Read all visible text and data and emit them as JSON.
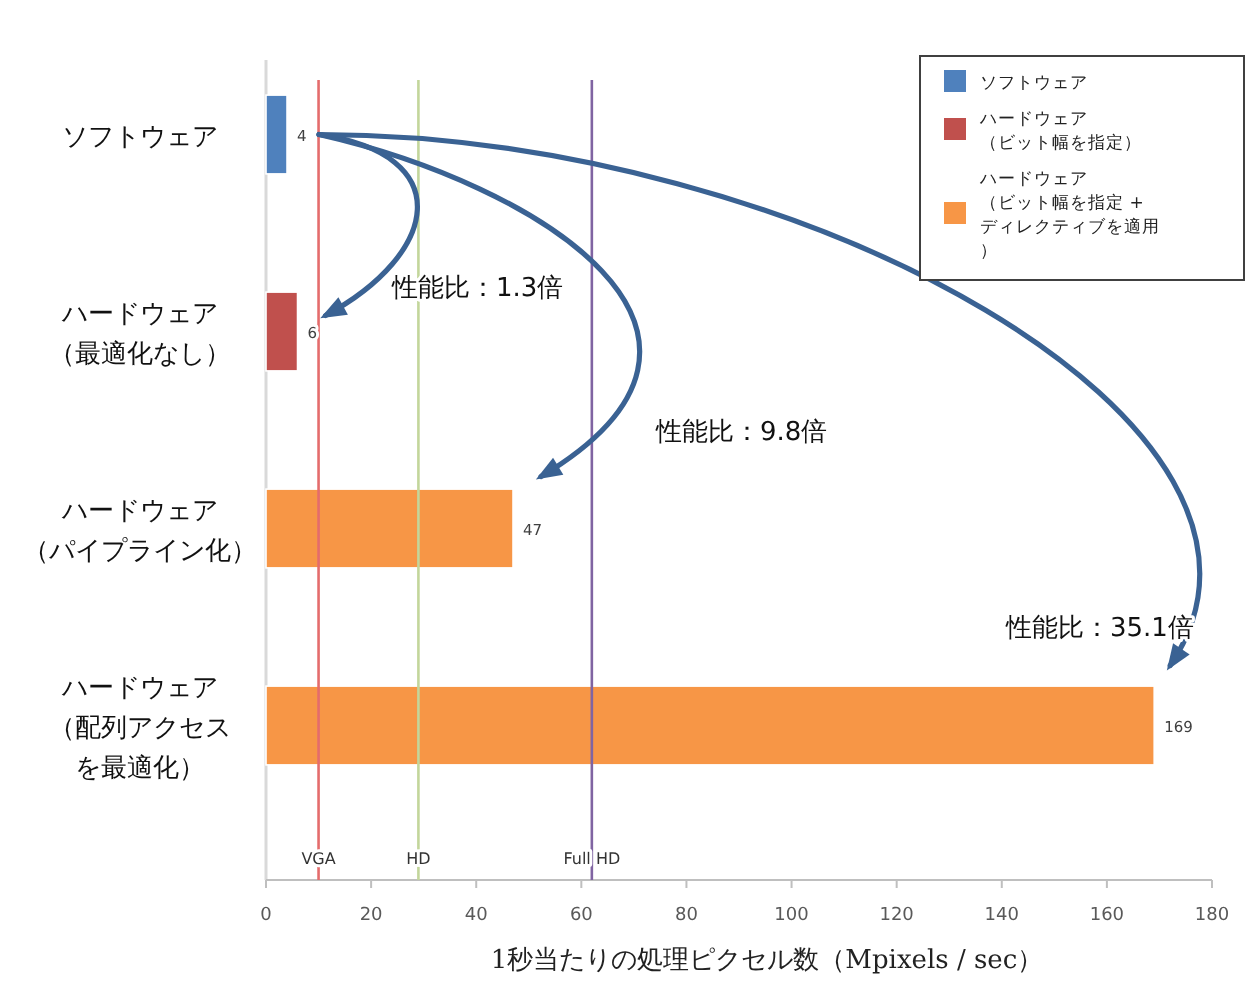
{
  "chart_data": {
    "type": "bar",
    "orientation": "horizontal",
    "stacked": true,
    "categories": [
      "ソフトウェア",
      "ハードウェア（最適化なし）",
      "ハードウェア（パイプライン化）",
      "ハードウェア（配列アクセスを最適化）"
    ],
    "series": [
      {
        "name": "ソフトウェア",
        "color": "#4f81bd",
        "values": [
          4,
          null,
          null,
          null
        ]
      },
      {
        "name": "ハードウェア（ビット幅を指定）",
        "color": "#c0504d",
        "values": [
          null,
          6,
          null,
          null
        ]
      },
      {
        "name": "ハードウェア（ビット幅を指定 +ディレクティブを適用）",
        "color": "#f79646",
        "values": [
          null,
          null,
          47,
          169
        ]
      }
    ],
    "xlabel": "1秒当たりの処理ピクセル数（Mpixels / sec）",
    "xlim": [
      0,
      180
    ],
    "xticks": [
      0,
      20,
      40,
      60,
      80,
      100,
      120,
      140,
      160,
      180
    ],
    "data_labels": true,
    "grid": false,
    "legend": "top right",
    "ref_lines": [
      {
        "axis": "x",
        "value": 10,
        "label": "VGA",
        "color": "#e46c6c"
      },
      {
        "axis": "x",
        "value": 29,
        "label": "HD",
        "color": "#c3d69b"
      },
      {
        "axis": "x",
        "value": 62,
        "label": "Full HD",
        "color": "#8064a2"
      }
    ],
    "annotations": [
      "性能比：1.3倍",
      "性能比：9.8倍",
      "性能比：35.1倍"
    ]
  }
}
